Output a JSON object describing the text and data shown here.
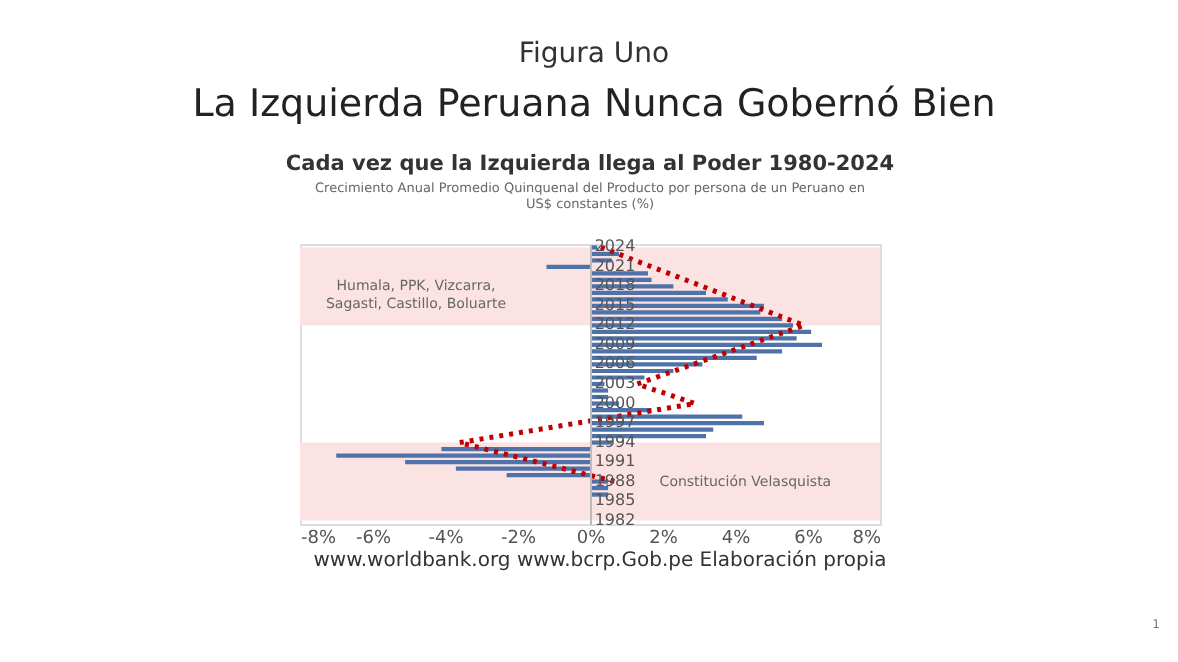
{
  "chart_data": {
    "type": "bar",
    "orientation": "horizontal",
    "title": "Cada vez que la Izquierda llega al Poder 1980-2024",
    "subtitle": "Crecimiento Anual Promedio Quinquenal del Producto por persona de un Peruano en US$ constantes (%)",
    "annotations": [
      "Figura Uno",
      "La Izquierda Peruana Nunca Gobernó Bien",
      "www.worldbank.org  www.bcrp.Gob.pe  Elaboración propia",
      "1"
    ],
    "categories": [
      "2024",
      null,
      null,
      "2021",
      null,
      null,
      "2018",
      null,
      null,
      "2015",
      null,
      null,
      "2012",
      null,
      null,
      "2009",
      null,
      null,
      "2006",
      null,
      null,
      "2003",
      null,
      null,
      "2000",
      null,
      null,
      "1997",
      null,
      null,
      "1994",
      null,
      null,
      "1991",
      null,
      null,
      "1988",
      null,
      null,
      "1985",
      null,
      null,
      "1982"
    ],
    "series": [
      {
        "color": "#4f72a8",
        "values": [
          0.2,
          0.8,
          0.6,
          -1.2,
          1.6,
          1.7,
          2.3,
          3.2,
          3.8,
          4.8,
          4.7,
          5.3,
          5.6,
          6.1,
          5.7,
          6.4,
          5.3,
          4.6,
          3.1,
          2.3,
          1.5,
          0.4,
          0.5,
          0.5,
          0.8,
          1.7,
          4.2,
          4.8,
          3.4,
          3.2,
          0.6,
          -4.1,
          -7.0,
          -5.1,
          -3.7,
          -2.3,
          0.5,
          0.5,
          0.5,
          0,
          0,
          0,
          0
        ]
      },
      {
        "type": "line",
        "color": "#c00000",
        "line_style": "dotted",
        "values": [
          0.3,
          null,
          null,
          null,
          null,
          null,
          null,
          null,
          null,
          null,
          null,
          null,
          5.9,
          null,
          null,
          null,
          null,
          null,
          null,
          null,
          null,
          1.3,
          null,
          null,
          2.9,
          null,
          null,
          null,
          null,
          null,
          -3.6,
          null,
          null,
          null,
          null,
          null,
          0.7,
          null,
          null,
          null,
          null,
          null,
          null
        ]
      }
    ],
    "bands": [
      {
        "axis": "y",
        "from": "2024",
        "to": "2012",
        "label": "Humala, PPK, Vizcarra, Sagasti, Castillo, Boluarte",
        "color": "#fbe3e3"
      },
      {
        "axis": "y",
        "from": "1994",
        "to": "1982",
        "label": "Constitución Velasquista",
        "color": "#fbe3e3"
      }
    ],
    "xlim": [
      -8,
      8
    ],
    "xticks": [
      {
        "value": -8,
        "label": "-8%"
      },
      {
        "value": -6,
        "label": "-6%"
      },
      {
        "value": -4,
        "label": "-4%"
      },
      {
        "value": -2,
        "label": "-2%"
      },
      {
        "value": 0,
        "label": "0%"
      },
      {
        "value": 2,
        "label": "2%"
      },
      {
        "value": 4,
        "label": "4%"
      },
      {
        "value": 6,
        "label": "6%"
      },
      {
        "value": 8,
        "label": "8%"
      }
    ],
    "grid": false
  }
}
